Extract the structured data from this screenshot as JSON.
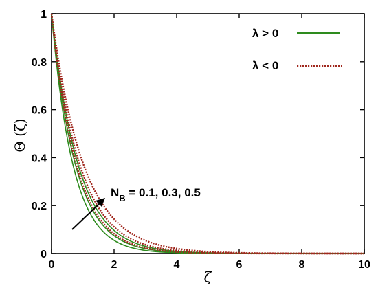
{
  "chart_data": {
    "type": "line",
    "xlabel": "ζ",
    "ylabel": "Θ (ζ)",
    "xlim": [
      0,
      10
    ],
    "ylim": [
      0,
      1
    ],
    "x_ticks": [
      "0",
      "2",
      "4",
      "6",
      "8",
      "10"
    ],
    "y_ticks": [
      "0",
      "0.2",
      "0.4",
      "0.6",
      "0.8",
      "1"
    ],
    "grid": false,
    "legend_position": "top-right",
    "legend": [
      {
        "label": "λ > 0",
        "color": "#2e8b1e",
        "style": "solid"
      },
      {
        "label": "λ < 0",
        "color": "#a0281e",
        "style": "dotted"
      }
    ],
    "annotation": {
      "text_main": "N",
      "text_sub": "B",
      "text_rest": " = 0.1, 0.3, 0.5",
      "arrow": "increasing"
    },
    "series": [
      {
        "group": "λ > 0",
        "color": "#2e8b1e",
        "style": "solid",
        "decay": 1.45,
        "x": [
          0,
          0.5,
          1,
          1.5,
          2,
          3,
          4,
          6,
          8,
          10
        ],
        "y": [
          1,
          0.484,
          0.235,
          0.114,
          0.055,
          0.013,
          0.003,
          0.0,
          0.0,
          0.0
        ]
      },
      {
        "group": "λ > 0",
        "color": "#2e8b1e",
        "style": "solid",
        "decay": 1.3,
        "x": [
          0,
          0.5,
          1,
          1.5,
          2,
          3,
          4,
          6,
          8,
          10
        ],
        "y": [
          1,
          0.522,
          0.273,
          0.142,
          0.074,
          0.02,
          0.006,
          0.0,
          0.0,
          0.0
        ]
      },
      {
        "group": "λ > 0",
        "color": "#2e8b1e",
        "style": "solid",
        "decay": 1.17,
        "x": [
          0,
          0.5,
          1,
          1.5,
          2,
          3,
          4,
          6,
          8,
          10
        ],
        "y": [
          1,
          0.557,
          0.31,
          0.173,
          0.096,
          0.03,
          0.009,
          0.001,
          0.0,
          0.0
        ]
      },
      {
        "group": "λ < 0",
        "color": "#a0281e",
        "style": "dotted",
        "decay": 1.25,
        "x": [
          0,
          0.5,
          1,
          1.5,
          2,
          3,
          4,
          6,
          8,
          10
        ],
        "y": [
          1,
          0.535,
          0.287,
          0.153,
          0.082,
          0.024,
          0.007,
          0.001,
          0.0,
          0.0
        ]
      },
      {
        "group": "λ < 0",
        "color": "#a0281e",
        "style": "dotted",
        "decay": 1.1,
        "x": [
          0,
          0.5,
          1,
          1.5,
          2,
          3,
          4,
          6,
          8,
          10
        ],
        "y": [
          1,
          0.577,
          0.333,
          0.192,
          0.111,
          0.037,
          0.012,
          0.001,
          0.0,
          0.0
        ]
      },
      {
        "group": "λ < 0",
        "color": "#a0281e",
        "style": "dotted",
        "decay": 0.97,
        "x": [
          0,
          0.5,
          1,
          1.5,
          2,
          3,
          4,
          6,
          8,
          10
        ],
        "y": [
          1,
          0.616,
          0.379,
          0.233,
          0.144,
          0.055,
          0.021,
          0.003,
          0.0,
          0.0
        ]
      }
    ]
  }
}
